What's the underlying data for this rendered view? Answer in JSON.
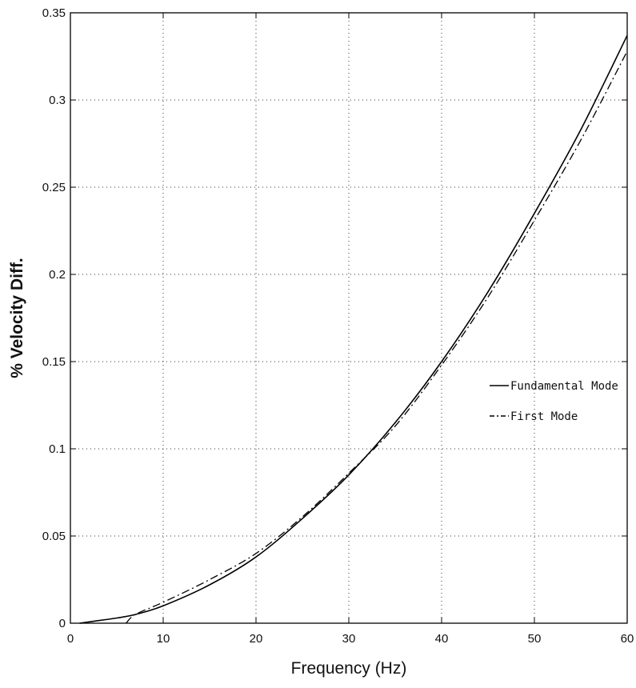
{
  "chart_data": {
    "type": "line",
    "title": "",
    "xlabel": "Frequency (Hz)",
    "ylabel": "% Velocity Diff.",
    "xlim": [
      0,
      60
    ],
    "ylim": [
      0,
      0.35
    ],
    "xticks": [
      0,
      10,
      20,
      30,
      40,
      50,
      60
    ],
    "xtick_labels": [
      "0",
      "10",
      "20",
      "30",
      "40",
      "50",
      "60"
    ],
    "yticks": [
      0,
      0.05,
      0.1,
      0.15,
      0.2,
      0.25,
      0.3,
      0.35
    ],
    "ytick_labels": [
      "0",
      "0.05",
      "0.1",
      "0.15",
      "0.2",
      "0.25",
      "0.3",
      "0.35"
    ],
    "grid": true,
    "legend_position": "right",
    "series": [
      {
        "name": "Fundamental Mode",
        "style": "solid",
        "color": "#000000",
        "x": [
          1,
          5,
          7,
          10,
          15,
          20,
          25,
          30,
          35,
          40,
          45,
          50,
          55,
          60
        ],
        "y": [
          0.0,
          0.003,
          0.005,
          0.01,
          0.022,
          0.038,
          0.06,
          0.085,
          0.115,
          0.15,
          0.19,
          0.235,
          0.283,
          0.337
        ]
      },
      {
        "name": "First Mode",
        "style": "dashdot",
        "color": "#000000",
        "x": [
          6,
          7,
          10,
          15,
          20,
          25,
          30,
          35,
          40,
          45,
          50,
          55,
          60
        ],
        "y": [
          0.0,
          0.005,
          0.012,
          0.025,
          0.04,
          0.061,
          0.086,
          0.113,
          0.148,
          0.187,
          0.231,
          0.277,
          0.328
        ]
      }
    ]
  }
}
